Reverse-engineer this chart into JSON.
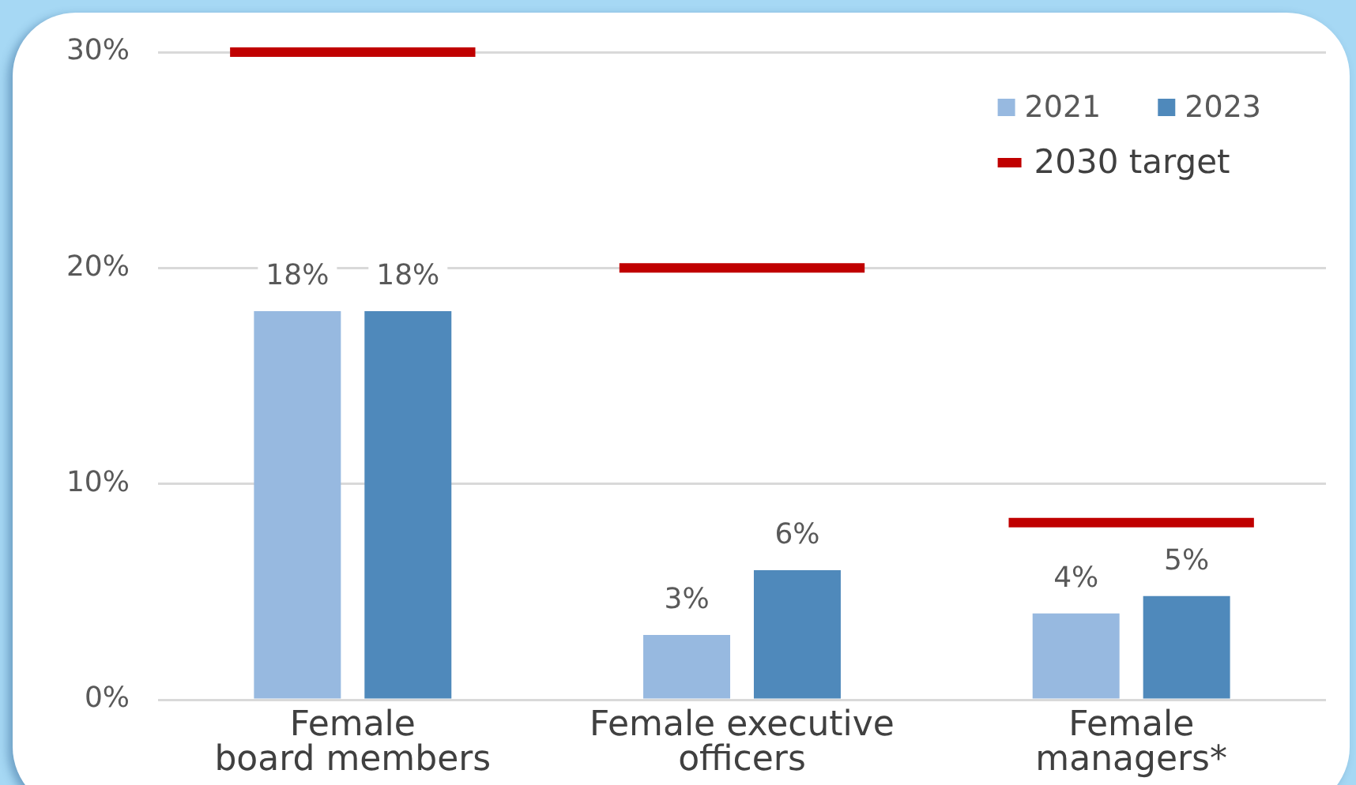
{
  "chart_data": {
    "type": "bar",
    "categories": [
      "Female\nboard members",
      "Female executive\nofficers",
      "Female\nmanagers*"
    ],
    "series": [
      {
        "name": "2021",
        "color": "#97b9e0",
        "values": [
          18,
          3,
          4
        ],
        "value_labels": [
          "18%",
          "3%",
          "4%"
        ]
      },
      {
        "name": "2023",
        "color": "#4f89bb",
        "values": [
          18,
          6,
          4.8
        ],
        "value_labels": [
          "18%",
          "6%",
          "5%"
        ]
      }
    ],
    "ref_lines": [
      {
        "axis": "y",
        "value": 30,
        "label": "2030 target",
        "color": "#c00000"
      },
      {
        "axis": "y",
        "value": 20,
        "color": "#c00000"
      },
      {
        "axis": "y",
        "value": 8.2,
        "color": "#c00000"
      }
    ],
    "ylim": [
      0,
      30
    ],
    "yticks": [
      {
        "value": 0,
        "label": "0%"
      },
      {
        "value": 10,
        "label": "10%"
      },
      {
        "value": 20,
        "label": "20%"
      },
      {
        "value": 30,
        "label": "30%"
      }
    ],
    "grid": "y",
    "legend": "top right"
  }
}
